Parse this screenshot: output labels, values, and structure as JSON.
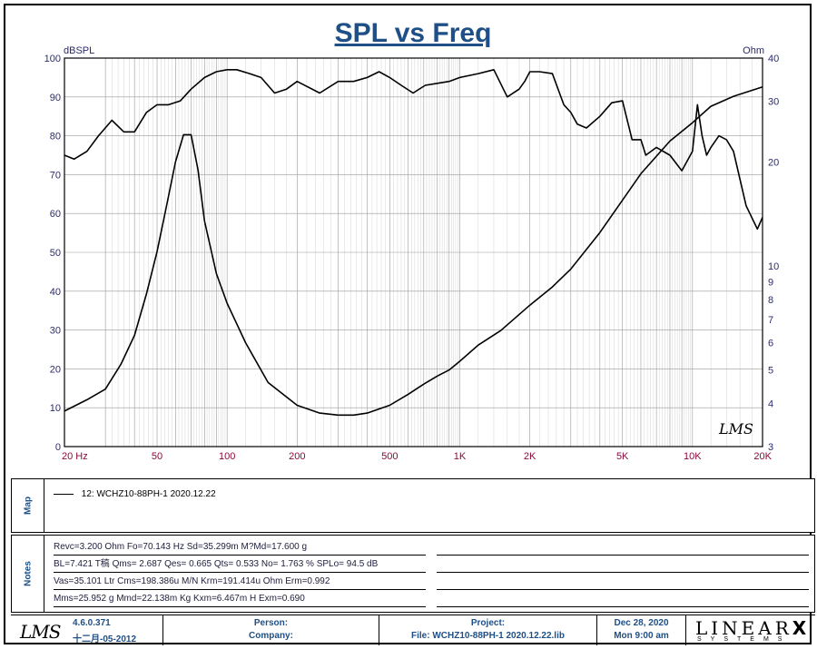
{
  "chart_data": {
    "type": "line",
    "title": "SPL vs Freq",
    "x_scale": "log",
    "xlim": [
      20,
      20000
    ],
    "x_ticks": [
      {
        "value": 20,
        "label": "20  Hz"
      },
      {
        "value": 50,
        "label": "50"
      },
      {
        "value": 100,
        "label": "100"
      },
      {
        "value": 200,
        "label": "200"
      },
      {
        "value": 500,
        "label": "500"
      },
      {
        "value": 1000,
        "label": "1K"
      },
      {
        "value": 2000,
        "label": "2K"
      },
      {
        "value": 5000,
        "label": "5K"
      },
      {
        "value": 10000,
        "label": "10K"
      },
      {
        "value": 20000,
        "label": "20K"
      }
    ],
    "left_axis": {
      "unit": "dBSPL",
      "range": [
        0,
        100
      ],
      "ticks": [
        0,
        10,
        20,
        30,
        40,
        50,
        60,
        70,
        80,
        90,
        100
      ]
    },
    "right_axis": {
      "unit": "Ohm",
      "scale": "log",
      "range": [
        3,
        40
      ],
      "ticks": [
        3,
        4,
        5,
        6,
        7,
        8,
        9,
        10,
        20,
        30,
        40
      ]
    },
    "grid": true,
    "series": [
      {
        "axis": "left",
        "x": [
          20,
          22,
          25,
          28,
          32,
          36,
          40,
          45,
          50,
          56,
          63,
          70,
          80,
          90,
          100,
          110,
          125,
          140,
          160,
          180,
          200,
          250,
          300,
          350,
          400,
          450,
          500,
          560,
          630,
          710,
          800,
          900,
          1000,
          1200,
          1400,
          1600,
          1800,
          1900,
          2000,
          2200,
          2500,
          2800,
          3000,
          3200,
          3500,
          4000,
          4500,
          5000,
          5500,
          6000,
          6300,
          7000,
          8000,
          9000,
          10000,
          10500,
          11000,
          11500,
          12000,
          13000,
          14000,
          15000,
          17000,
          19000,
          20000
        ],
        "y": [
          75,
          74,
          76,
          80,
          84,
          81,
          81,
          86,
          88,
          88,
          89,
          92,
          95,
          96.5,
          97,
          97,
          96,
          95,
          91,
          92,
          94,
          91,
          94,
          94,
          95,
          96.5,
          95,
          93,
          91,
          93,
          93.5,
          94,
          95,
          96,
          97,
          90,
          92,
          94,
          96.5,
          96.5,
          96,
          88,
          86,
          83,
          82,
          85,
          88.5,
          89,
          79,
          79,
          75,
          77,
          75,
          71,
          76,
          88,
          80,
          75,
          77,
          80,
          79,
          76,
          62,
          56,
          59
        ]
      },
      {
        "axis": "right",
        "x": [
          20,
          25,
          30,
          35,
          40,
          45,
          50,
          55,
          60,
          65,
          70,
          75,
          80,
          90,
          100,
          120,
          150,
          200,
          250,
          300,
          350,
          400,
          500,
          600,
          700,
          800,
          900,
          1000,
          1200,
          1500,
          2000,
          2500,
          3000,
          4000,
          5000,
          6000,
          8000,
          10000,
          12000,
          15000,
          20000
        ],
        "y": [
          3.8,
          4.1,
          4.4,
          5.2,
          6.3,
          8.3,
          11,
          15,
          20,
          24,
          24,
          19,
          13.5,
          9.5,
          7.8,
          6.0,
          4.6,
          3.95,
          3.75,
          3.7,
          3.7,
          3.75,
          3.95,
          4.25,
          4.55,
          4.8,
          5.0,
          5.3,
          5.9,
          6.5,
          7.7,
          8.7,
          9.8,
          12.5,
          15.5,
          18.5,
          23,
          26,
          29,
          31,
          33
        ]
      }
    ]
  },
  "map": {
    "label": "Map",
    "entry": "12: WCHZ10-88PH-1 2020.12.22"
  },
  "notes": {
    "label": "Notes",
    "lines": [
      "Revc=3.200 Ohm  Fo=70.143 Hz  Sd=35.299m M?Md=17.600 g",
      "BL=7.421 T稿  Qms= 2.687  Qes= 0.665  Qts= 0.533  No= 1.763 %  SPLo= 94.5 dB",
      "Vas=35.101 Ltr  Cms=198.386u M/N  Krm=191.414u Ohm  Erm=0.992",
      "Mms=25.952 g  Mmd=22.138m Kg  Kxm=6.467m H  Exm=0.690"
    ]
  },
  "footer": {
    "logo": "LMS",
    "version": "4.6.0.371",
    "version_date": "十二月-05-2012",
    "person_label": "Person:",
    "company_label": "Company:",
    "project_label": "Project:",
    "file_label": "File: WCHZ10-88PH-1 2020.12.22.lib",
    "date": "Dec 28, 2020",
    "time": "Mon  9:00 am",
    "brand_top": "LINEAR",
    "brand_x": "X",
    "brand_bottom": "SYSTEMS"
  },
  "watermark": "LMS"
}
